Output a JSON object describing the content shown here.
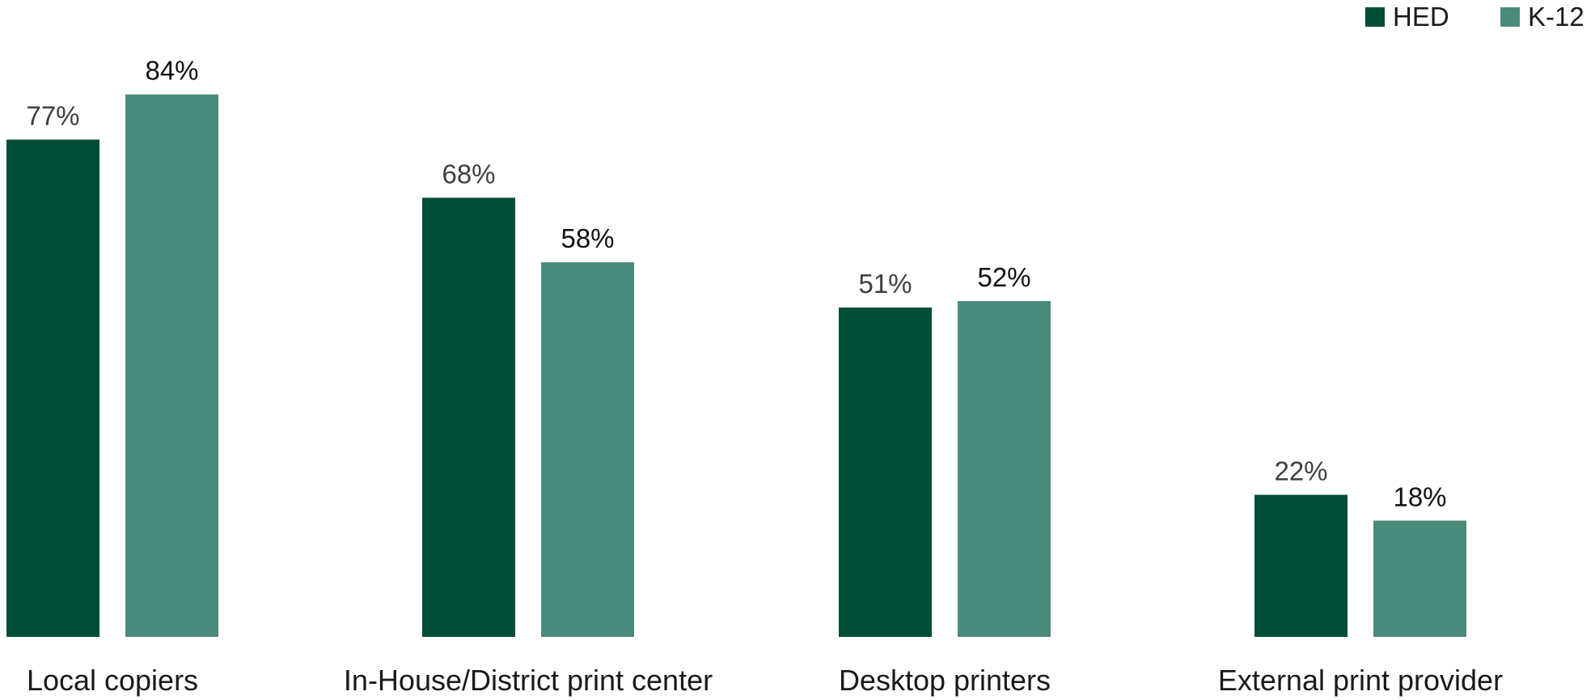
{
  "chart_data": {
    "type": "bar",
    "title": "",
    "xlabel": "",
    "ylabel": "",
    "ylim": [
      0,
      100
    ],
    "grid": false,
    "legend_position": "top-right",
    "categories": [
      "Local copiers",
      "In-House/District print center",
      "Desktop printers",
      "External print provider"
    ],
    "series": [
      {
        "name": "HED",
        "color": "#004d36",
        "label_color": "#404040",
        "values": [
          77,
          68,
          51,
          22
        ],
        "labels": [
          "77%",
          "68%",
          "51%",
          "22%"
        ]
      },
      {
        "name": "K-12",
        "color": "#4a8a7a",
        "label_color": "#111111",
        "values": [
          84,
          58,
          52,
          18
        ],
        "labels": [
          "84%",
          "58%",
          "52%",
          "18%"
        ]
      }
    ]
  }
}
